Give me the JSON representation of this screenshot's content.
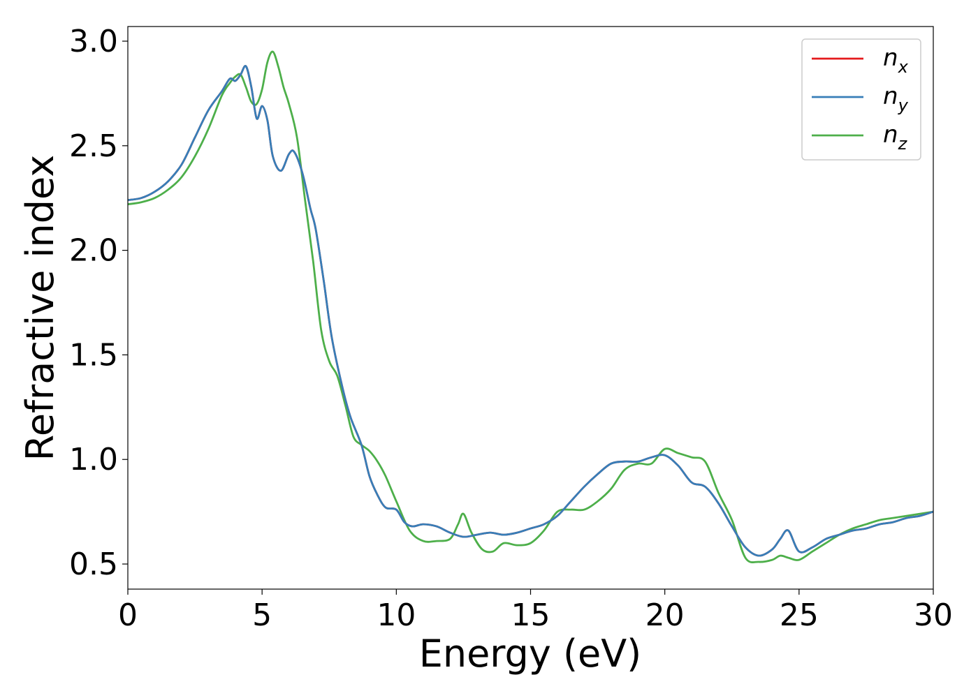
{
  "chart_data": {
    "type": "line",
    "title": "",
    "xlabel": "Energy (eV)",
    "ylabel": "Refractive index",
    "xlim": [
      0,
      30
    ],
    "ylim": [
      0.38,
      3.07
    ],
    "xticks": [
      0,
      5,
      10,
      15,
      20,
      25,
      30
    ],
    "xtick_labels": [
      "0",
      "5",
      "10",
      "15",
      "20",
      "25",
      "30"
    ],
    "yticks": [
      0.5,
      1.0,
      1.5,
      2.0,
      2.5,
      3.0
    ],
    "ytick_labels": [
      "0.5",
      "1.0",
      "1.5",
      "2.0",
      "2.5",
      "3.0"
    ],
    "grid": false,
    "legend_position": "top-right",
    "series": [
      {
        "name": "n_x",
        "legend_base": "n",
        "legend_sub": "x",
        "color": "#e41a1c",
        "x": [
          0,
          0.5,
          1,
          1.5,
          2,
          2.5,
          3,
          3.5,
          3.8,
          4.0,
          4.2,
          4.4,
          4.6,
          4.8,
          5.0,
          5.2,
          5.4,
          5.7,
          6.0,
          6.2,
          6.5,
          6.8,
          7.0,
          7.3,
          7.6,
          8.0,
          8.3,
          8.7,
          9.0,
          9.3,
          9.6,
          10.0,
          10.3,
          10.6,
          11.0,
          11.5,
          12.0,
          12.5,
          13.0,
          13.5,
          14.0,
          14.5,
          15.0,
          15.5,
          16.0,
          16.5,
          17.0,
          17.5,
          18.0,
          18.5,
          19.0,
          19.5,
          20.0,
          20.5,
          21.0,
          21.5,
          22.0,
          22.5,
          23.0,
          23.5,
          24.0,
          24.3,
          24.6,
          25.0,
          25.5,
          26.0,
          26.5,
          27.0,
          27.5,
          28.0,
          28.5,
          29.0,
          29.5,
          30.0
        ],
        "y": [
          2.24,
          2.25,
          2.28,
          2.33,
          2.41,
          2.54,
          2.67,
          2.76,
          2.82,
          2.81,
          2.84,
          2.88,
          2.78,
          2.63,
          2.69,
          2.62,
          2.45,
          2.38,
          2.46,
          2.47,
          2.37,
          2.2,
          2.1,
          1.85,
          1.58,
          1.34,
          1.2,
          1.07,
          0.92,
          0.83,
          0.77,
          0.76,
          0.7,
          0.68,
          0.69,
          0.68,
          0.65,
          0.63,
          0.64,
          0.65,
          0.64,
          0.65,
          0.67,
          0.69,
          0.73,
          0.8,
          0.87,
          0.93,
          0.98,
          0.99,
          0.99,
          1.01,
          1.02,
          0.97,
          0.89,
          0.87,
          0.79,
          0.68,
          0.58,
          0.54,
          0.57,
          0.62,
          0.66,
          0.56,
          0.58,
          0.62,
          0.64,
          0.66,
          0.67,
          0.69,
          0.7,
          0.72,
          0.73,
          0.75
        ]
      },
      {
        "name": "n_y",
        "legend_base": "n",
        "legend_sub": "y",
        "color": "#377eb8",
        "x": [
          0,
          0.5,
          1,
          1.5,
          2,
          2.5,
          3,
          3.5,
          3.8,
          4.0,
          4.2,
          4.4,
          4.6,
          4.8,
          5.0,
          5.2,
          5.4,
          5.7,
          6.0,
          6.2,
          6.5,
          6.8,
          7.0,
          7.3,
          7.6,
          8.0,
          8.3,
          8.7,
          9.0,
          9.3,
          9.6,
          10.0,
          10.3,
          10.6,
          11.0,
          11.5,
          12.0,
          12.5,
          13.0,
          13.5,
          14.0,
          14.5,
          15.0,
          15.5,
          16.0,
          16.5,
          17.0,
          17.5,
          18.0,
          18.5,
          19.0,
          19.5,
          20.0,
          20.5,
          21.0,
          21.5,
          22.0,
          22.5,
          23.0,
          23.5,
          24.0,
          24.3,
          24.6,
          25.0,
          25.5,
          26.0,
          26.5,
          27.0,
          27.5,
          28.0,
          28.5,
          29.0,
          29.5,
          30.0
        ],
        "y": [
          2.24,
          2.25,
          2.28,
          2.33,
          2.41,
          2.54,
          2.67,
          2.76,
          2.82,
          2.81,
          2.84,
          2.88,
          2.78,
          2.63,
          2.69,
          2.62,
          2.45,
          2.38,
          2.46,
          2.47,
          2.37,
          2.2,
          2.1,
          1.85,
          1.58,
          1.34,
          1.2,
          1.07,
          0.92,
          0.83,
          0.77,
          0.76,
          0.7,
          0.68,
          0.69,
          0.68,
          0.65,
          0.63,
          0.64,
          0.65,
          0.64,
          0.65,
          0.67,
          0.69,
          0.73,
          0.8,
          0.87,
          0.93,
          0.98,
          0.99,
          0.99,
          1.01,
          1.02,
          0.97,
          0.89,
          0.87,
          0.79,
          0.68,
          0.58,
          0.54,
          0.57,
          0.62,
          0.66,
          0.56,
          0.58,
          0.62,
          0.64,
          0.66,
          0.67,
          0.69,
          0.7,
          0.72,
          0.73,
          0.75
        ]
      },
      {
        "name": "n_z",
        "legend_base": "n",
        "legend_sub": "z",
        "color": "#4daf4a",
        "x": [
          0,
          0.5,
          1,
          1.5,
          2,
          2.5,
          3,
          3.5,
          3.8,
          4.0,
          4.2,
          4.4,
          4.6,
          4.8,
          5.0,
          5.2,
          5.4,
          5.6,
          5.8,
          6.0,
          6.3,
          6.6,
          6.9,
          7.2,
          7.5,
          7.8,
          8.1,
          8.4,
          8.7,
          9.0,
          9.3,
          9.6,
          10.0,
          10.5,
          11.0,
          11.5,
          12.0,
          12.3,
          12.5,
          12.8,
          13.2,
          13.6,
          14.0,
          14.5,
          15.0,
          15.5,
          16.0,
          16.5,
          17.0,
          17.5,
          18.0,
          18.5,
          19.0,
          19.5,
          20.0,
          20.5,
          21.0,
          21.5,
          22.0,
          22.5,
          23.0,
          23.5,
          24.0,
          24.3,
          24.6,
          25.0,
          25.5,
          26.0,
          26.5,
          27.0,
          27.5,
          28.0,
          28.5,
          29.0,
          29.5,
          30.0
        ],
        "y": [
          2.22,
          2.23,
          2.25,
          2.29,
          2.35,
          2.45,
          2.58,
          2.74,
          2.8,
          2.83,
          2.84,
          2.78,
          2.71,
          2.7,
          2.77,
          2.9,
          2.95,
          2.88,
          2.78,
          2.7,
          2.54,
          2.24,
          1.95,
          1.62,
          1.47,
          1.4,
          1.26,
          1.11,
          1.07,
          1.04,
          0.99,
          0.92,
          0.8,
          0.66,
          0.61,
          0.61,
          0.62,
          0.69,
          0.74,
          0.65,
          0.57,
          0.56,
          0.6,
          0.59,
          0.6,
          0.66,
          0.75,
          0.76,
          0.76,
          0.8,
          0.86,
          0.95,
          0.98,
          0.98,
          1.05,
          1.03,
          1.01,
          0.99,
          0.84,
          0.71,
          0.53,
          0.51,
          0.52,
          0.54,
          0.53,
          0.52,
          0.56,
          0.6,
          0.64,
          0.67,
          0.69,
          0.71,
          0.72,
          0.73,
          0.74,
          0.75
        ]
      }
    ]
  }
}
